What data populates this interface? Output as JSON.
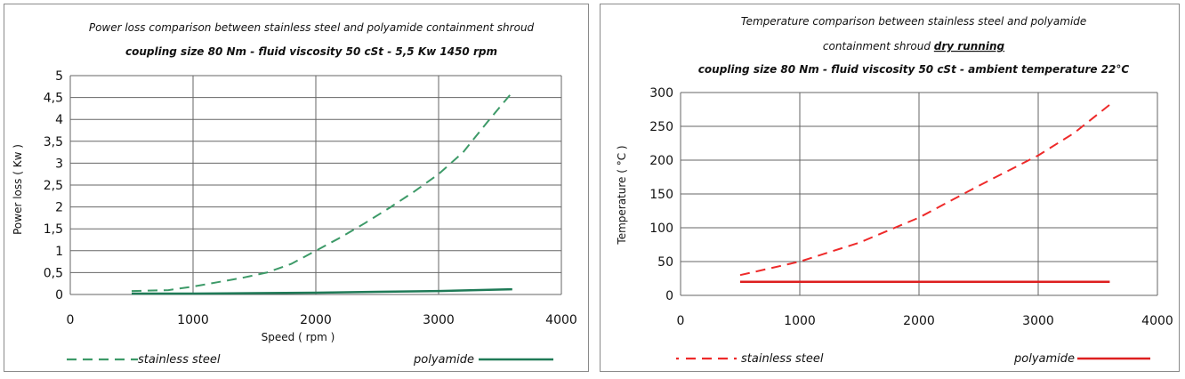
{
  "chart_data": [
    {
      "type": "line",
      "title": "Power loss comparison between stainless steel and polyamide containment shroud",
      "subtitle": "coupling size 80 Nm  -  fluid viscosity 50 cSt  -  5,5 Kw 1450 rpm",
      "xlabel": "Speed ( rpm )",
      "ylabel": "Power loss ( Kw )",
      "xlim": [
        0,
        4000
      ],
      "ylim": [
        0,
        5
      ],
      "xticks": [
        "0",
        "1000",
        "2000",
        "3000",
        "4000"
      ],
      "yticks": [
        "0",
        "0,5",
        "1",
        "1,5",
        "2",
        "2,5",
        "3",
        "3,5",
        "4",
        "4,5",
        "5"
      ],
      "grid": true,
      "legend_position": "bottom",
      "series": [
        {
          "name": "stainless  steel",
          "style": "dashed",
          "color": "#3d9a68",
          "x": [
            500,
            800,
            1000,
            1200,
            1400,
            1600,
            1800,
            2000,
            2200,
            2400,
            2600,
            2800,
            3000,
            3200,
            3400,
            3600
          ],
          "y": [
            0.08,
            0.1,
            0.18,
            0.28,
            0.38,
            0.5,
            0.7,
            1.0,
            1.3,
            1.63,
            1.98,
            2.35,
            2.75,
            3.25,
            3.95,
            4.62
          ]
        },
        {
          "name": "polyamide",
          "style": "solid",
          "color": "#1f7a57",
          "x": [
            500,
            1000,
            1500,
            2000,
            2500,
            3000,
            3600
          ],
          "y": [
            0.02,
            0.02,
            0.03,
            0.04,
            0.06,
            0.08,
            0.12
          ]
        }
      ]
    },
    {
      "type": "line",
      "title": "Temperature comparison between stainless steel and polyamide",
      "title_line2": "containment shroud ",
      "title_emphasis": "dry running",
      "subtitle": "coupling size 80 Nm  -  fluid viscosity 50 cSt - ambient temperature 22°C",
      "xlabel": "",
      "ylabel": "Temperature ( °C )",
      "xlim": [
        0,
        4000
      ],
      "ylim": [
        0,
        300
      ],
      "xticks": [
        "0",
        "1000",
        "2000",
        "3000",
        "4000"
      ],
      "yticks": [
        "0",
        "50",
        "100",
        "150",
        "200",
        "250",
        "300"
      ],
      "grid": true,
      "legend_position": "bottom",
      "series": [
        {
          "name": "stainless  steel",
          "style": "dashed",
          "color": "#ee2a2a",
          "x": [
            500,
            1000,
            1500,
            2000,
            2500,
            3000,
            3300,
            3600
          ],
          "y": [
            30,
            50,
            78,
            115,
            162,
            207,
            240,
            282
          ]
        },
        {
          "name": "polyamide",
          "style": "solid",
          "color": "#dd1f1f",
          "x": [
            500,
            1000,
            2000,
            3000,
            3600
          ],
          "y": [
            20,
            20,
            20,
            20,
            20
          ]
        }
      ]
    }
  ]
}
